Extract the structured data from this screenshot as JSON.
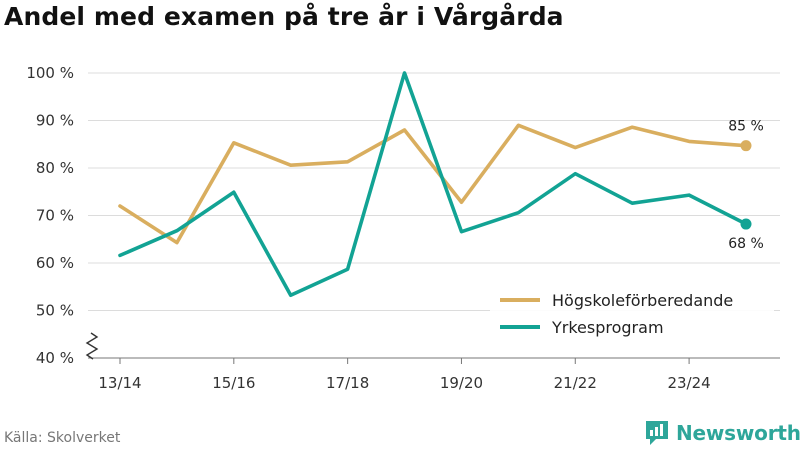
{
  "title": "Andel med examen på tre år i Vårgårda",
  "source": "Källa: Skolverket",
  "brand": "Newsworthy",
  "colors": {
    "hogskole": "#d9ae5f",
    "yrkes": "#12a394",
    "grid": "#dcdcdc",
    "axis": "#777777"
  },
  "chart_data": {
    "type": "line",
    "title": "Andel med examen på tre år i Vårgårda",
    "x": [
      "13/14",
      "14/15",
      "15/16",
      "16/17",
      "17/18",
      "18/19",
      "19/20",
      "20/21",
      "21/22",
      "22/23",
      "23/24",
      "24/25"
    ],
    "x_tick_labels": [
      "13/14",
      "15/16",
      "17/18",
      "19/20",
      "21/22",
      "23/24"
    ],
    "ylim": [
      40,
      100
    ],
    "y_ticks": [
      40,
      50,
      60,
      70,
      80,
      90,
      100
    ],
    "y_tick_labels": [
      "40 %",
      "50 %",
      "60 %",
      "70 %",
      "80 %",
      "90 %",
      "100 %"
    ],
    "y_axis_break": true,
    "grid": "horizontal",
    "legend": "bottom-right",
    "series": [
      {
        "name": "Högskoleförberedande",
        "color": "#d9ae5f",
        "values": [
          72,
          64.3,
          85.3,
          80.6,
          81.3,
          88,
          72.8,
          89,
          84.3,
          88.6,
          85.6,
          84.7
        ],
        "end_label": "85 %"
      },
      {
        "name": "Yrkesprogram",
        "color": "#12a394",
        "values": [
          61.6,
          66.8,
          74.9,
          53.2,
          58.7,
          100,
          66.6,
          70.6,
          78.8,
          72.6,
          74.3,
          68.2
        ],
        "end_label": "68 %"
      }
    ]
  }
}
